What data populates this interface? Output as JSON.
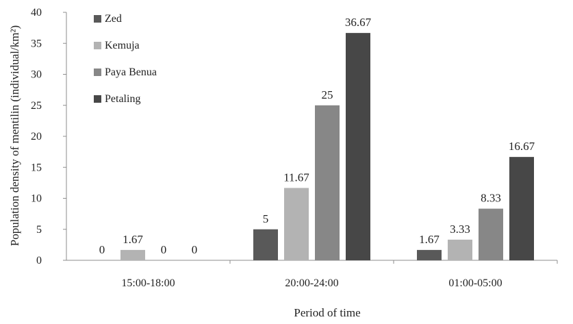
{
  "chart_data": {
    "type": "bar",
    "title": "",
    "xlabel": "Period of time",
    "ylabel": "Population density of mentilin (individual/km²)",
    "ylim": [
      0,
      40
    ],
    "yticks": [
      0,
      5,
      10,
      15,
      20,
      25,
      30,
      35,
      40
    ],
    "grid": false,
    "legend_position": "top-left",
    "categories": [
      "15:00-18:00",
      "20:00-24:00",
      "01:00-05:00"
    ],
    "series": [
      {
        "name": "Zed",
        "color": "#595959",
        "values": [
          0,
          5,
          1.67
        ],
        "labels": [
          "0",
          "5",
          "1.67"
        ]
      },
      {
        "name": "Kemuja",
        "color": "#b3b3b3",
        "values": [
          1.67,
          11.67,
          3.33
        ],
        "labels": [
          "1.67",
          "11.67",
          "3.33"
        ]
      },
      {
        "name": "Paya Benua",
        "color": "#878787",
        "values": [
          0,
          25,
          8.33
        ],
        "labels": [
          "0",
          "25",
          "8.33"
        ]
      },
      {
        "name": "Petaling",
        "color": "#474747",
        "values": [
          0,
          36.67,
          16.67
        ],
        "labels": [
          "0",
          "36.67",
          "16.67"
        ]
      }
    ]
  }
}
